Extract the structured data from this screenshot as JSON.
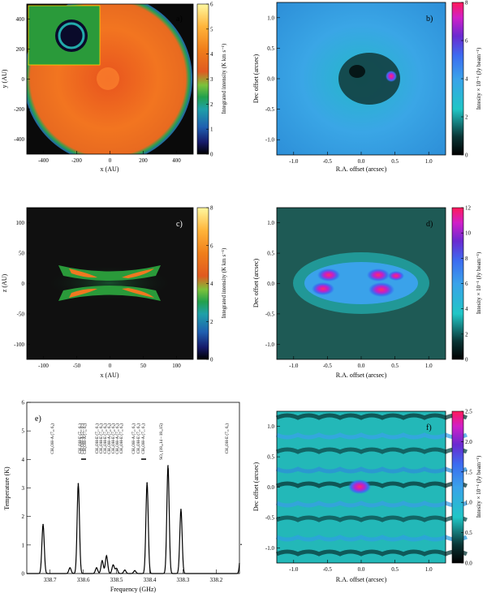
{
  "panels": {
    "a": {
      "label": "a)",
      "xlabel": "x (AU)",
      "ylabel": "y (AU)",
      "xticks": [
        "-400",
        "-200",
        "0",
        "200",
        "400"
      ],
      "yticks": [
        "400",
        "200",
        "0",
        "-200",
        "-400"
      ],
      "cbar_label": "Integrated intensity (K km s⁻¹)",
      "cbar_ticks": [
        "6",
        "5",
        "4",
        "3",
        "2",
        "1",
        "0"
      ]
    },
    "b": {
      "label": "b)",
      "xlabel": "R.A. offset (arcsec)",
      "ylabel": "Dec offset (arcsec)",
      "xticks": [
        "-1.0",
        "-0.5",
        "0.0",
        "0.5",
        "1.0"
      ],
      "yticks": [
        "1.0",
        "0.5",
        "0.0",
        "-0.5",
        "-1.0"
      ],
      "cbar_label": "Intesity × 10⁻¹ (Jy beam⁻¹)",
      "cbar_ticks": [
        "8",
        "6",
        "4",
        "2",
        "0"
      ]
    },
    "c": {
      "label": "c)",
      "xlabel": "x (AU)",
      "ylabel": "z (AU)",
      "xticks": [
        "-100",
        "-50",
        "0",
        "50",
        "100"
      ],
      "yticks": [
        "100",
        "50",
        "0",
        "-50",
        "-100"
      ],
      "cbar_label": "Integrated intensity (K km s⁻¹)",
      "cbar_ticks": [
        "8",
        "6",
        "4",
        "2",
        "0"
      ]
    },
    "d": {
      "label": "d)",
      "xlabel": "R.A. offset (arcsec)",
      "ylabel": "Dec offset (arcsec)",
      "xticks": [
        "-1.0",
        "-0.5",
        "0.0",
        "0.5",
        "1.0"
      ],
      "yticks": [
        "1.0",
        "0.5",
        "0.0",
        "-0.5",
        "-1.0"
      ],
      "cbar_label": "Intesity × 10⁻¹ (Jy beam⁻¹)",
      "cbar_ticks": [
        "12",
        "10",
        "8",
        "6",
        "4",
        "2",
        "0"
      ]
    },
    "f": {
      "label": "f)",
      "xlabel": "R.A. offset (arcsec)",
      "ylabel": "Dec offset (arcsec)",
      "xticks": [
        "-1.0",
        "-0.5",
        "0.0",
        "0.5",
        "1.0"
      ],
      "yticks": [
        "1.0",
        "0.5",
        "0.0",
        "-0.5",
        "-1.0"
      ],
      "cbar_label": "Intesity × 10⁻¹ (Jy beam⁻¹)",
      "cbar_ticks": [
        "2.5",
        "2.0",
        "1.5",
        "1.0",
        "0.5",
        "0.0"
      ]
    }
  },
  "colors": {
    "cbar_a": [
      "#000000",
      "#1a1a6e",
      "#1f77b4",
      "#22aa55",
      "#9acd32",
      "#ffd700",
      "#ff8c00",
      "#ff4500",
      "#ffe066"
    ],
    "cbar_b": [
      "#000000",
      "#0b3d3d",
      "#21c7c7",
      "#3aa0e8",
      "#3a6ff0",
      "#5a2ed0",
      "#c020c0",
      "#ff1a60"
    ]
  },
  "chart_data": {
    "type": "line",
    "label": "e)",
    "xlabel": "Frequency (GHz)",
    "ylabel": "Temperature (K)",
    "xlim": [
      338.77,
      338.13
    ],
    "ylim": [
      0,
      6
    ],
    "xticks": [
      "338.7",
      "338.6",
      "338.5",
      "338.4",
      "338.3",
      "338.2"
    ],
    "yticks": [
      "6",
      "5",
      "4",
      "3",
      "2",
      "1",
      "0"
    ],
    "peaks": [
      {
        "x": 338.721,
        "y": 1.72,
        "label": "CH₃OH-A (7₄,4₀ 6₄, 0)"
      },
      {
        "x": 338.64,
        "y": 0.2,
        "label": "CH₃OH-E (7₀, 6₀)"
      },
      {
        "x": 338.615,
        "y": 3.15,
        "label": "CH₃OH-A (7₅, 6₅)"
      },
      {
        "x": 338.56,
        "y": 0.2,
        "label": "CH₃OH-A (7₁, 6₁)"
      },
      {
        "x": 338.543,
        "y": 0.45,
        "label": "CH₃OH-E (7₅, 6₅)"
      },
      {
        "x": 338.53,
        "y": 0.62,
        "label": "CH₃OH-E (7₆, 6₆)"
      },
      {
        "x": 338.51,
        "y": 0.3,
        "label": "CH₃OH-A (7₄, 6₄)"
      },
      {
        "x": 338.5,
        "y": 0.18,
        "label": "CH₃OH-E (7₄, 6₄)"
      },
      {
        "x": 338.475,
        "y": 0.12,
        "label": "CH₃OH-A (7₃, 6₃)"
      },
      {
        "x": 338.445,
        "y": 0.1,
        "label": "CH₃OH-E (7₃, 6₃)"
      },
      {
        "x": 338.408,
        "y": 3.18,
        "label": "CH₃OH-A (7₂, 6₂)"
      },
      {
        "x": 338.345,
        "y": 3.78,
        "label": "CH₃OH-A (7₁, 6₁)"
      },
      {
        "x": 338.306,
        "y": 2.25,
        "label": "SO₂ (18₄,14 – 18₃,15)"
      },
      {
        "x": 338.125,
        "y": 1.02,
        "label": "CH₃OH-E (7₀, 6₀)"
      }
    ],
    "line_labels": [
      "CH₃OH-A (7₄, 6₄)",
      "CH₃OH-E (7₀, 6₀)",
      "CH₃OH-A (7₁, 6₁)",
      "CH₃OH-A (7₅, 6₅)",
      "CH₃OH-E (7₁, 6₁)",
      "CH₃OH-E (7₅, 6₅)",
      "CH₃OH-E (7₆, 6₆)",
      "CH₃OH-A (7₄, 6₄)",
      "CH₃OH-E (7₄, 6₄)",
      "CH₃OH-A (7₃, 6₃)",
      "CH₃OH-E (7₃, 6₃)",
      "CH₃OH-A (7₂, 6₂)",
      "CH₃OH-E (7₂, 6₂)",
      "CH₃OH-A (7₁, 6₁)",
      "SO₂ (18₄,14 – 18₃,15)",
      "CH₃OH-E (7₀, 6₀)"
    ]
  }
}
